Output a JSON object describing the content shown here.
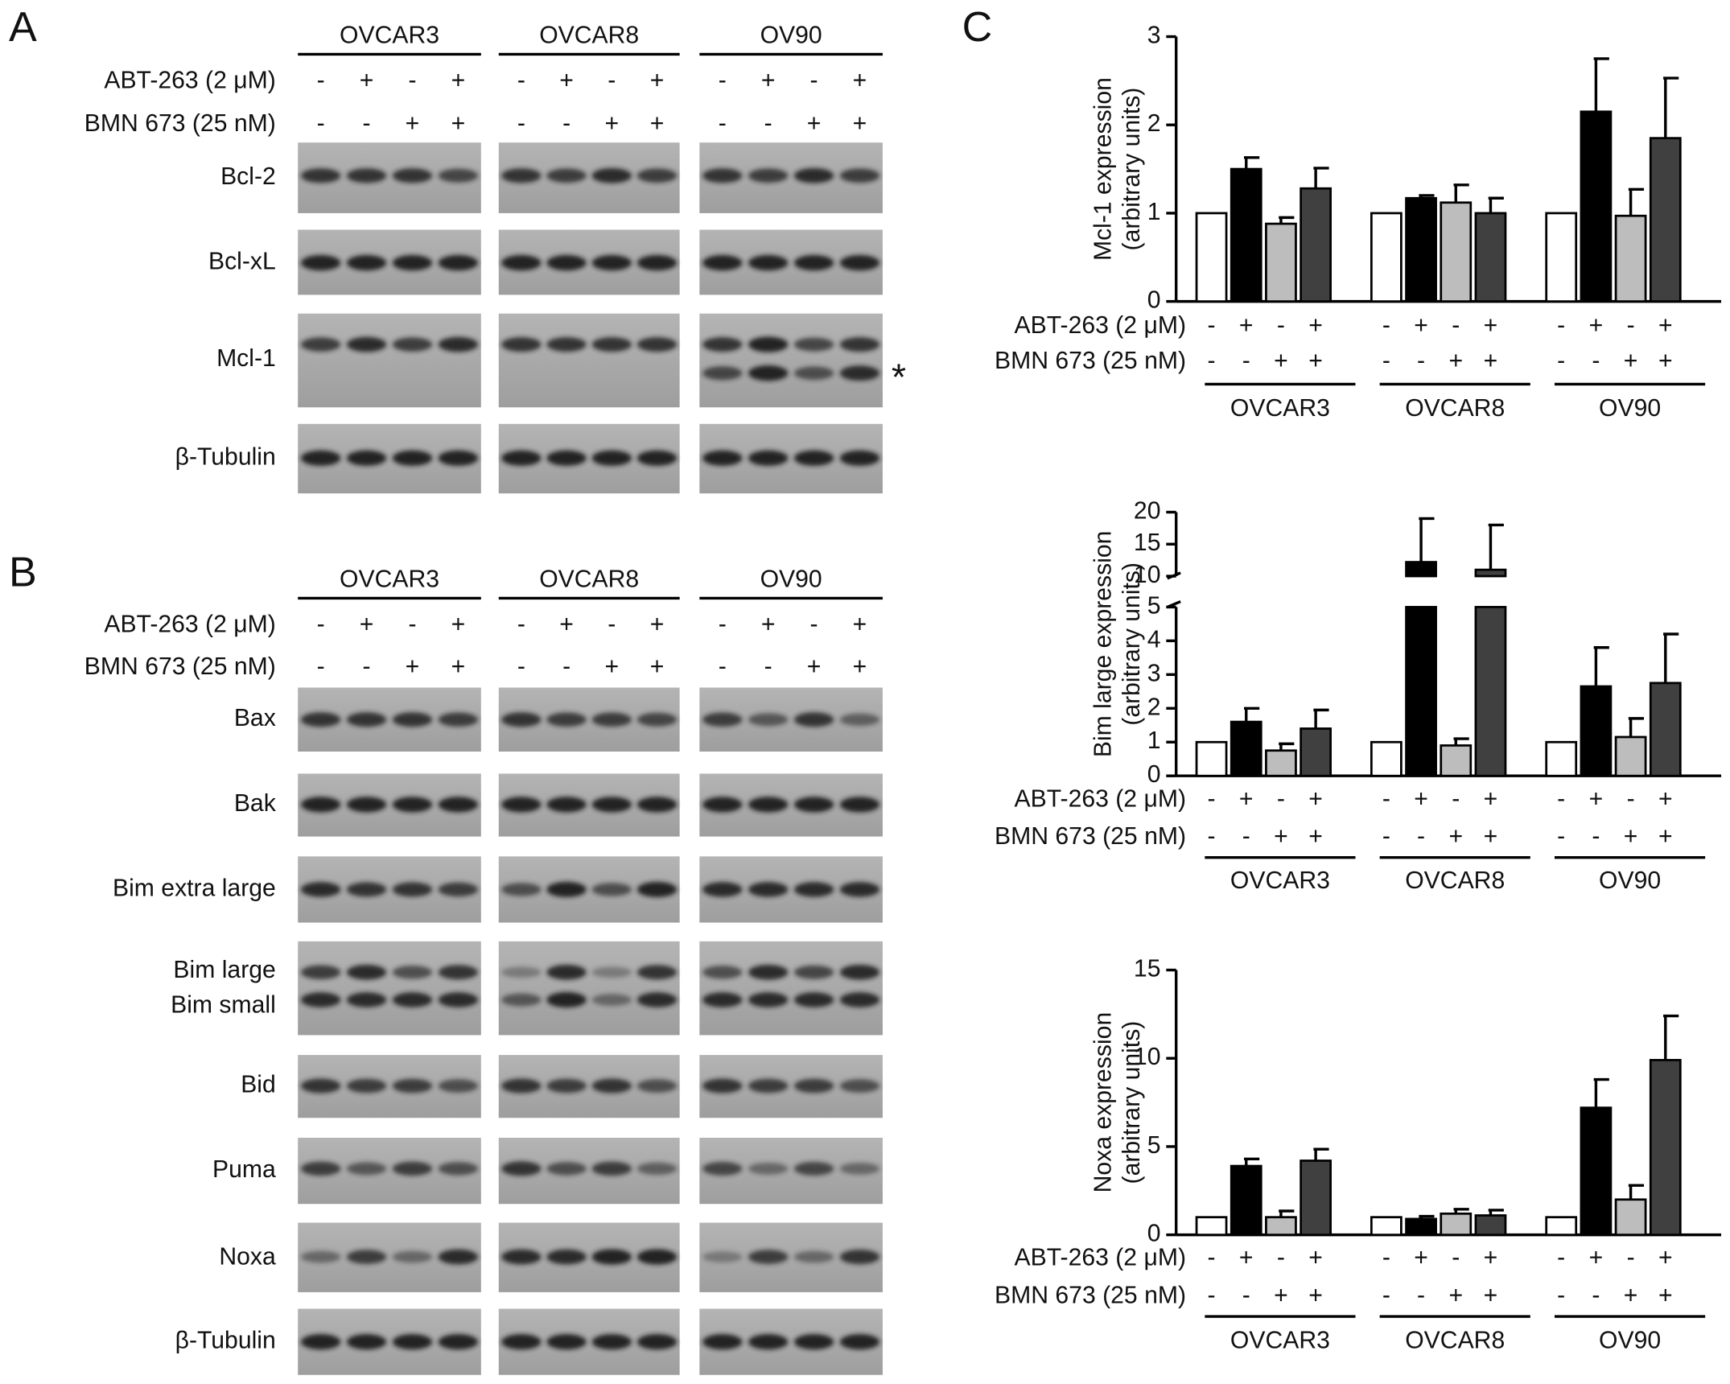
{
  "panel_a": {
    "letter": "A",
    "cell_lines": [
      "OVCAR3",
      "OVCAR8",
      "OV90"
    ],
    "treatments": [
      {
        "name": "ABT-263 (2 μM)",
        "signs": [
          "-",
          "+",
          "-",
          "+"
        ]
      },
      {
        "name": "BMN 673 (25 nM)",
        "signs": [
          "-",
          "-",
          "+",
          "+"
        ]
      }
    ],
    "rows": [
      "Bcl-2",
      "Bcl-xL",
      "Mcl-1",
      "β-Tubulin"
    ],
    "annotation": "*"
  },
  "panel_b": {
    "letter": "B",
    "cell_lines": [
      "OVCAR3",
      "OVCAR8",
      "OV90"
    ],
    "treatments": [
      {
        "name": "ABT-263 (2 μM)",
        "signs": [
          "-",
          "+",
          "-",
          "+"
        ]
      },
      {
        "name": "BMN 673 (25 nM)",
        "signs": [
          "-",
          "-",
          "+",
          "+"
        ]
      }
    ],
    "rows": [
      "Bax",
      "Bak",
      "Bim extra large",
      "Bim large",
      "Bim small",
      "Bid",
      "Puma",
      "Noxa",
      "β-Tubulin"
    ]
  },
  "panel_c": {
    "letter": "C"
  },
  "chart_data": [
    {
      "type": "bar",
      "y_label": [
        "Mcl-1 expression",
        "(arbitrary units)"
      ],
      "groups": [
        "OVCAR3",
        "OVCAR8",
        "OV90"
      ],
      "treatments": [
        {
          "name": "ABT-263 (2 μM)",
          "signs": [
            "-",
            "+",
            "-",
            "+"
          ]
        },
        {
          "name": "BMN 673 (25 nM)",
          "signs": [
            "-",
            "-",
            "+",
            "+"
          ]
        }
      ],
      "series": [
        {
          "color": "#ffffff",
          "values": [
            1,
            1,
            1
          ],
          "errors": [
            0,
            0,
            0
          ]
        },
        {
          "color": "#000000",
          "values": [
            1.5,
            1.17,
            2.15
          ],
          "errors": [
            0.13,
            0.03,
            0.6
          ]
        },
        {
          "color": "#bdbdbd",
          "values": [
            0.88,
            1.12,
            0.97
          ],
          "errors": [
            0.07,
            0.2,
            0.3
          ]
        },
        {
          "color": "#404040",
          "values": [
            1.28,
            1.0,
            1.85
          ],
          "errors": [
            0.23,
            0.17,
            0.68
          ]
        }
      ],
      "ylim": [
        0,
        3
      ],
      "yticks": [
        0,
        1,
        2,
        3
      ]
    },
    {
      "type": "bar",
      "y_label": [
        "Bim large expression",
        "(arbitrary units)"
      ],
      "groups": [
        "OVCAR3",
        "OVCAR8",
        "OV90"
      ],
      "treatments": [
        {
          "name": "ABT-263 (2 μM)",
          "signs": [
            "-",
            "+",
            "-",
            "+"
          ]
        },
        {
          "name": "BMN 673 (25 nM)",
          "signs": [
            "-",
            "-",
            "+",
            "+"
          ]
        }
      ],
      "series": [
        {
          "color": "#ffffff",
          "values": [
            1,
            1,
            1
          ],
          "errors": [
            0,
            0,
            0
          ]
        },
        {
          "color": "#000000",
          "values": [
            1.6,
            12.2,
            2.65
          ],
          "errors": [
            0.4,
            6.8,
            1.15
          ]
        },
        {
          "color": "#bdbdbd",
          "values": [
            0.75,
            0.9,
            1.15
          ],
          "errors": [
            0.2,
            0.2,
            0.55
          ]
        },
        {
          "color": "#404040",
          "values": [
            1.4,
            11.0,
            2.75
          ],
          "errors": [
            0.55,
            7.0,
            1.45
          ]
        }
      ],
      "ylim": [
        0,
        20
      ],
      "ybreak": [
        5,
        10
      ],
      "yticks": [
        0,
        1,
        2,
        3,
        4,
        5,
        10,
        15,
        20
      ]
    },
    {
      "type": "bar",
      "y_label": [
        "Noxa expression",
        "(arbitrary units)"
      ],
      "groups": [
        "OVCAR3",
        "OVCAR8",
        "OV90"
      ],
      "treatments": [
        {
          "name": "ABT-263 (2 μM)",
          "signs": [
            "-",
            "+",
            "-",
            "+"
          ]
        },
        {
          "name": "BMN 673 (25 nM)",
          "signs": [
            "-",
            "-",
            "+",
            "+"
          ]
        }
      ],
      "series": [
        {
          "color": "#ffffff",
          "values": [
            1,
            1,
            1
          ],
          "errors": [
            0,
            0,
            0
          ]
        },
        {
          "color": "#000000",
          "values": [
            3.9,
            0.9,
            7.2
          ],
          "errors": [
            0.4,
            0.15,
            1.6
          ]
        },
        {
          "color": "#bdbdbd",
          "values": [
            1.0,
            1.2,
            2.0
          ],
          "errors": [
            0.35,
            0.25,
            0.8
          ]
        },
        {
          "color": "#404040",
          "values": [
            4.2,
            1.1,
            9.9
          ],
          "errors": [
            0.65,
            0.3,
            2.5
          ]
        }
      ],
      "ylim": [
        0,
        15
      ],
      "yticks": [
        0,
        5,
        10,
        15
      ]
    }
  ]
}
